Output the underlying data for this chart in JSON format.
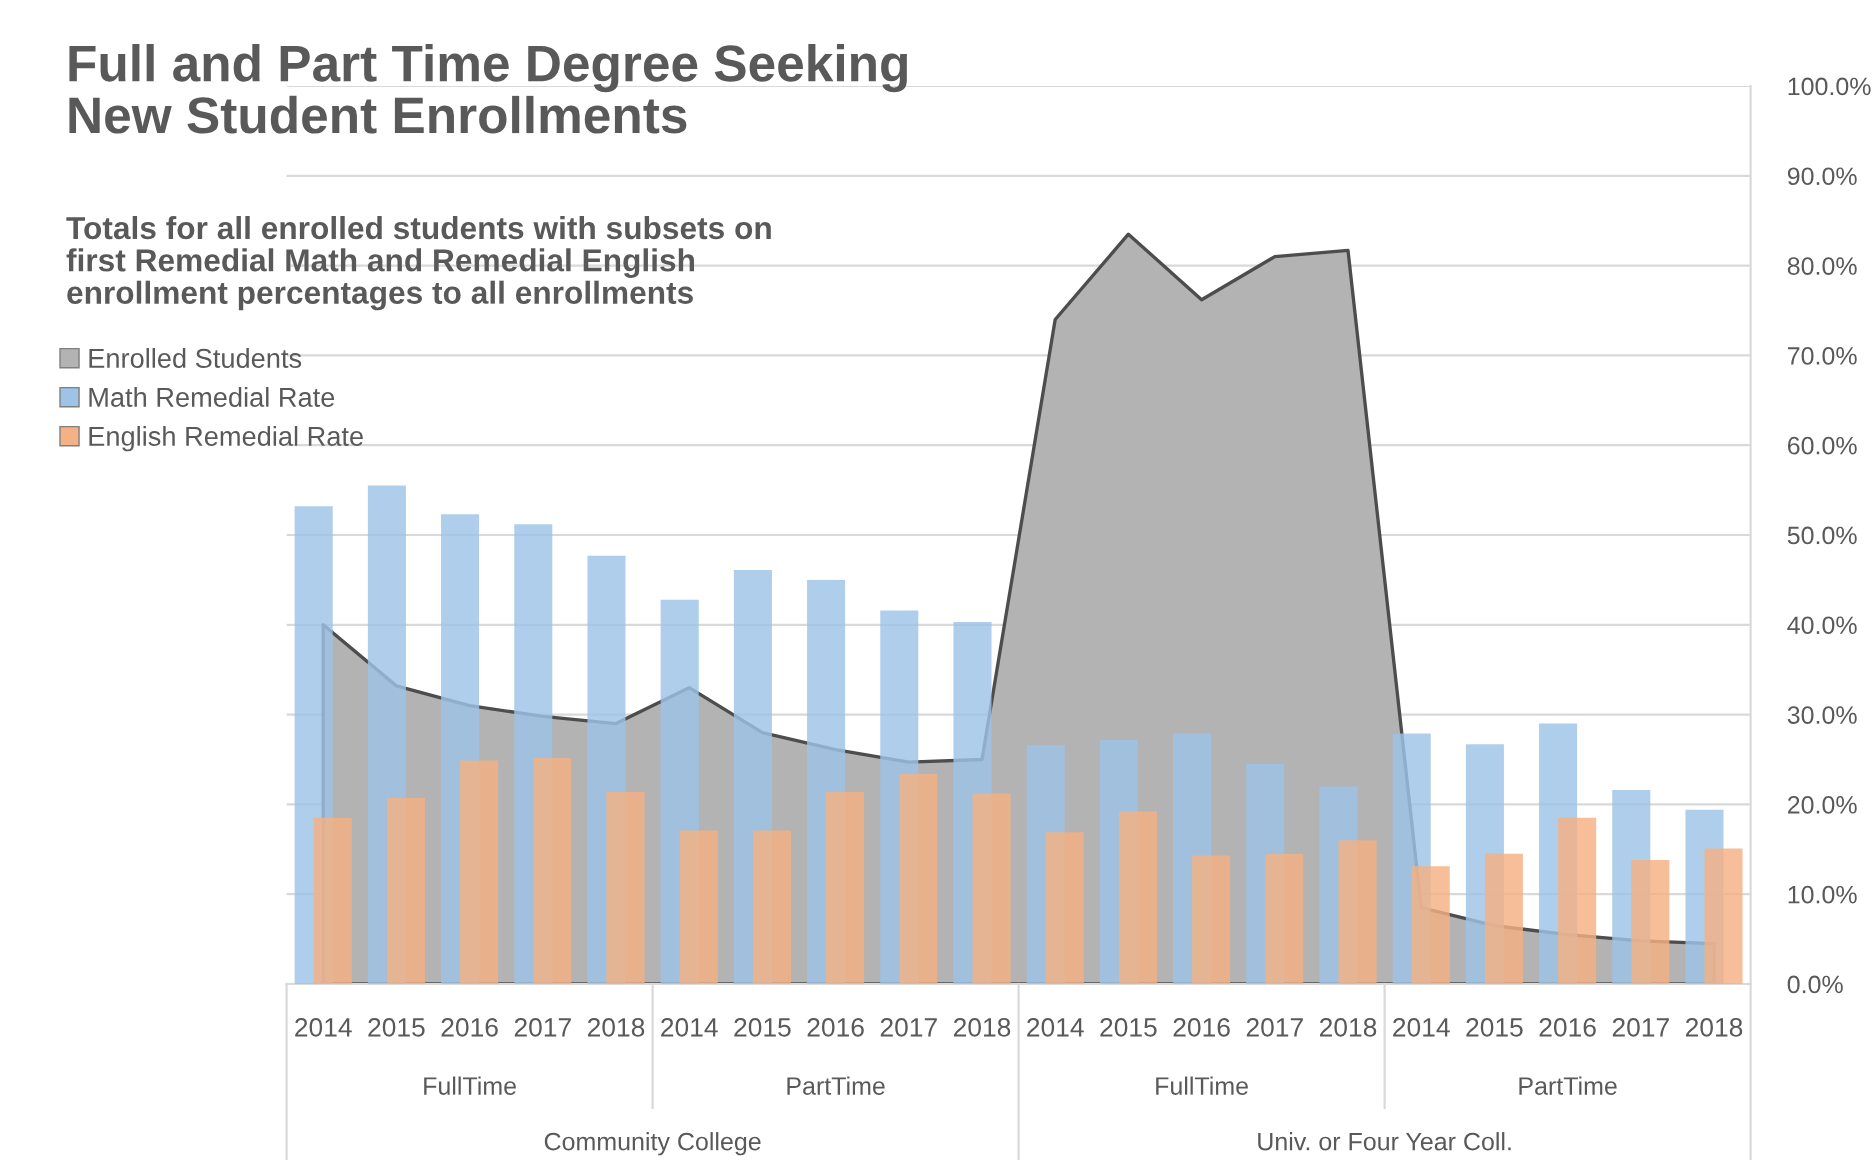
{
  "chart_data": {
    "type": "bar",
    "title": "Full and Part Time Degree Seeking\nNew Student Enrollments",
    "subtitle": "Totals for all enrolled students with subsets on\nfirst Remedial Math and Remedial English\nenrollment percentages to all enrollments",
    "categories": [
      "2014",
      "2015",
      "2016",
      "2017",
      "2018",
      "2014",
      "2015",
      "2016",
      "2017",
      "2018",
      "2014",
      "2015",
      "2016",
      "2017",
      "2018",
      "2014",
      "2015",
      "2016",
      "2017",
      "2018"
    ],
    "annotations": [
      "FullTime",
      "PartTime",
      "FullTime",
      "PartTime",
      "Community College",
      "Univ. or Four Year Coll."
    ],
    "series": [
      {
        "name": "Enrolled Students",
        "type": "area",
        "color": "#b3b3b3",
        "values": [
          40.0,
          33.2,
          31.0,
          29.8,
          29.0,
          33.0,
          28.0,
          26.1,
          24.7,
          25.0,
          74.0,
          83.5,
          76.2,
          81.0,
          81.7,
          8.5,
          6.5,
          5.5,
          4.8,
          4.5
        ]
      },
      {
        "name": "Math Remedial Rate",
        "color": "#9dc3e6",
        "values": [
          53.2,
          55.5,
          52.3,
          51.2,
          47.7,
          42.8,
          46.1,
          45.0,
          41.6,
          40.3,
          26.6,
          27.2,
          27.9,
          24.5,
          22.0,
          27.9,
          26.7,
          29.0,
          21.6,
          19.4
        ]
      },
      {
        "name": "English Remedial Rate",
        "color": "#f4b183",
        "values": [
          18.5,
          20.7,
          24.9,
          25.2,
          21.4,
          17.1,
          17.1,
          21.4,
          23.4,
          21.2,
          16.9,
          19.2,
          14.3,
          14.5,
          16.0,
          13.1,
          14.5,
          18.5,
          13.8,
          15.1
        ]
      }
    ],
    "ylim": [
      0,
      100
    ],
    "yticks": [
      {
        "value": 0,
        "label": "0.0%"
      },
      {
        "value": 10,
        "label": "10.0%"
      },
      {
        "value": 20,
        "label": "20.0%"
      },
      {
        "value": 30,
        "label": "30.0%"
      },
      {
        "value": 40,
        "label": "40.0%"
      },
      {
        "value": 50,
        "label": "50.0%"
      },
      {
        "value": 60,
        "label": "60.0%"
      },
      {
        "value": 70,
        "label": "70.0%"
      },
      {
        "value": 80,
        "label": "80.0%"
      },
      {
        "value": 90,
        "label": "90.0%"
      },
      {
        "value": 100,
        "label": "100.0%"
      }
    ],
    "grid": "y",
    "legend": "top left"
  }
}
